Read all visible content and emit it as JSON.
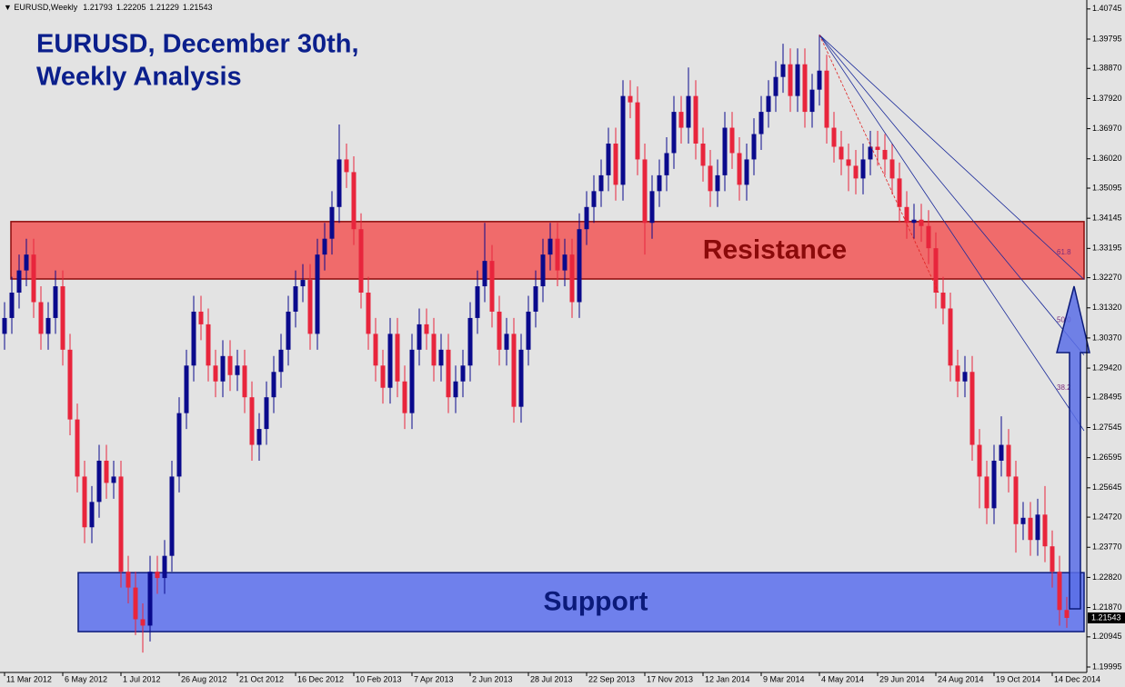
{
  "chart_data": {
    "type": "candlestick",
    "symbol": "EURUSD,Weekly",
    "title_lines": [
      "EURUSD, December 30th,",
      "Weekly Analysis"
    ],
    "up_color": "#0a0a8c",
    "down_color": "#e8253c",
    "categories": [
      "11 Mar 2012",
      null,
      null,
      null,
      null,
      null,
      null,
      null,
      "6 May 2012",
      null,
      null,
      null,
      null,
      null,
      null,
      null,
      "1 Jul 2012",
      null,
      null,
      null,
      null,
      null,
      null,
      null,
      "26 Aug 2012",
      null,
      null,
      null,
      null,
      null,
      null,
      null,
      "21 Oct 2012",
      null,
      null,
      null,
      null,
      null,
      null,
      null,
      "16 Dec 2012",
      null,
      null,
      null,
      null,
      null,
      null,
      null,
      "10 Feb 2013",
      null,
      null,
      null,
      null,
      null,
      null,
      null,
      "7 Apr 2013",
      null,
      null,
      null,
      null,
      null,
      null,
      null,
      "2 Jun 2013",
      null,
      null,
      null,
      null,
      null,
      null,
      null,
      "28 Jul 2013",
      null,
      null,
      null,
      null,
      null,
      null,
      null,
      "22 Sep 2013",
      null,
      null,
      null,
      null,
      null,
      null,
      null,
      "17 Nov 2013",
      null,
      null,
      null,
      null,
      null,
      null,
      null,
      "12 Jan 2014",
      null,
      null,
      null,
      null,
      null,
      null,
      null,
      "9 Mar 2014",
      null,
      null,
      null,
      null,
      null,
      null,
      null,
      "4 May 2014",
      null,
      null,
      null,
      null,
      null,
      null,
      null,
      "29 Jun 2014",
      null,
      null,
      null,
      null,
      null,
      null,
      null,
      "24 Aug 2014",
      null,
      null,
      null,
      null,
      null,
      null,
      null,
      "19 Oct 2014",
      null,
      null,
      null,
      null,
      null,
      null,
      null,
      "14 Dec 2014",
      null,
      null
    ],
    "open": [
      1.305,
      1.31,
      1.318,
      1.325,
      1.33,
      1.315,
      1.305,
      1.31,
      1.32,
      1.3,
      1.278,
      1.26,
      1.244,
      1.252,
      1.265,
      1.258,
      1.26,
      1.23,
      1.225,
      1.215,
      1.213,
      1.23,
      1.228,
      1.235,
      1.26,
      1.28,
      1.295,
      1.312,
      1.308,
      1.295,
      1.29,
      1.298,
      1.292,
      1.295,
      1.285,
      1.27,
      1.275,
      1.285,
      1.293,
      1.3,
      1.312,
      1.32,
      1.322,
      1.305,
      1.33,
      1.335,
      1.345,
      1.36,
      1.356,
      1.338,
      1.318,
      1.305,
      1.295,
      1.288,
      1.305,
      1.29,
      1.28,
      1.3,
      1.308,
      1.305,
      1.295,
      1.3,
      1.285,
      1.29,
      1.295,
      1.31,
      1.32,
      1.328,
      1.312,
      1.3,
      1.305,
      1.282,
      1.3,
      1.312,
      1.32,
      1.33,
      1.335,
      1.325,
      1.33,
      1.315,
      1.338,
      1.345,
      1.35,
      1.355,
      1.365,
      1.352,
      1.38,
      1.378,
      1.36,
      1.34,
      1.35,
      1.355,
      1.362,
      1.375,
      1.37,
      1.38,
      1.365,
      1.358,
      1.35,
      1.355,
      1.37,
      1.362,
      1.352,
      1.36,
      1.368,
      1.375,
      1.38,
      1.386,
      1.39,
      1.38,
      1.39,
      1.375,
      1.382,
      1.388,
      1.37,
      1.364,
      1.36,
      1.358,
      1.354,
      1.36,
      1.364,
      1.363,
      1.36,
      1.354,
      1.345,
      1.34,
      1.341,
      1.339,
      1.332,
      1.318,
      1.313,
      1.295,
      1.29,
      1.293,
      1.27,
      1.26,
      1.25,
      1.265,
      1.27,
      1.26,
      1.245,
      1.247,
      1.24,
      1.248,
      1.238,
      1.23,
      1.21793
    ],
    "high": [
      1.315,
      1.323,
      1.33,
      1.335,
      1.335,
      1.32,
      1.315,
      1.325,
      1.325,
      1.305,
      1.283,
      1.265,
      1.257,
      1.27,
      1.27,
      1.265,
      1.265,
      1.235,
      1.23,
      1.22,
      1.235,
      1.235,
      1.24,
      1.265,
      1.285,
      1.3,
      1.317,
      1.317,
      1.313,
      1.3,
      1.303,
      1.303,
      1.3,
      1.3,
      1.29,
      1.28,
      1.29,
      1.298,
      1.305,
      1.317,
      1.325,
      1.327,
      1.327,
      1.335,
      1.34,
      1.35,
      1.371,
      1.365,
      1.361,
      1.343,
      1.323,
      1.31,
      1.3,
      1.31,
      1.31,
      1.295,
      1.305,
      1.313,
      1.313,
      1.31,
      1.305,
      1.305,
      1.295,
      1.3,
      1.315,
      1.325,
      1.34,
      1.333,
      1.317,
      1.31,
      1.31,
      1.305,
      1.317,
      1.325,
      1.335,
      1.34,
      1.34,
      1.335,
      1.335,
      1.343,
      1.35,
      1.355,
      1.36,
      1.37,
      1.37,
      1.385,
      1.385,
      1.383,
      1.365,
      1.355,
      1.36,
      1.367,
      1.38,
      1.38,
      1.389,
      1.385,
      1.37,
      1.363,
      1.36,
      1.375,
      1.375,
      1.367,
      1.365,
      1.373,
      1.38,
      1.385,
      1.391,
      1.3965,
      1.395,
      1.395,
      1.395,
      1.387,
      1.3993,
      1.393,
      1.375,
      1.369,
      1.365,
      1.363,
      1.365,
      1.369,
      1.369,
      1.368,
      1.365,
      1.359,
      1.35,
      1.346,
      1.346,
      1.344,
      1.337,
      1.323,
      1.318,
      1.3,
      1.298,
      1.298,
      1.275,
      1.265,
      1.27,
      1.279,
      1.275,
      1.265,
      1.252,
      1.252,
      1.253,
      1.257,
      1.243,
      1.235,
      1.22205
    ],
    "low": [
      1.3,
      1.305,
      1.313,
      1.32,
      1.31,
      1.3,
      1.3,
      1.305,
      1.295,
      1.273,
      1.255,
      1.239,
      1.239,
      1.247,
      1.253,
      1.253,
      1.225,
      1.22,
      1.21,
      1.2045,
      1.208,
      1.223,
      1.223,
      1.23,
      1.255,
      1.275,
      1.29,
      1.303,
      1.29,
      1.285,
      1.285,
      1.287,
      1.287,
      1.28,
      1.265,
      1.265,
      1.27,
      1.28,
      1.288,
      1.295,
      1.307,
      1.315,
      1.3,
      1.3,
      1.325,
      1.33,
      1.34,
      1.351,
      1.333,
      1.313,
      1.3,
      1.29,
      1.283,
      1.283,
      1.285,
      1.275,
      1.275,
      1.295,
      1.3,
      1.29,
      1.29,
      1.28,
      1.28,
      1.285,
      1.29,
      1.305,
      1.315,
      1.307,
      1.295,
      1.295,
      1.277,
      1.277,
      1.295,
      1.307,
      1.315,
      1.325,
      1.32,
      1.32,
      1.31,
      1.31,
      1.333,
      1.34,
      1.345,
      1.35,
      1.347,
      1.347,
      1.373,
      1.355,
      1.33,
      1.335,
      1.345,
      1.35,
      1.357,
      1.365,
      1.365,
      1.36,
      1.353,
      1.345,
      1.345,
      1.35,
      1.357,
      1.347,
      1.347,
      1.355,
      1.363,
      1.37,
      1.375,
      1.381,
      1.375,
      1.375,
      1.37,
      1.37,
      1.377,
      1.365,
      1.359,
      1.355,
      1.35,
      1.349,
      1.349,
      1.355,
      1.358,
      1.355,
      1.349,
      1.34,
      1.335,
      1.335,
      1.334,
      1.327,
      1.313,
      1.308,
      1.29,
      1.285,
      1.285,
      1.265,
      1.25,
      1.245,
      1.245,
      1.26,
      1.255,
      1.236,
      1.24,
      1.235,
      1.235,
      1.233,
      1.225,
      1.213,
      1.21229
    ],
    "close": [
      1.31,
      1.318,
      1.325,
      1.33,
      1.315,
      1.305,
      1.31,
      1.32,
      1.3,
      1.278,
      1.26,
      1.244,
      1.252,
      1.265,
      1.258,
      1.26,
      1.23,
      1.225,
      1.215,
      1.213,
      1.23,
      1.228,
      1.235,
      1.26,
      1.28,
      1.295,
      1.312,
      1.308,
      1.295,
      1.29,
      1.298,
      1.292,
      1.295,
      1.285,
      1.27,
      1.275,
      1.285,
      1.293,
      1.3,
      1.312,
      1.32,
      1.322,
      1.305,
      1.33,
      1.335,
      1.345,
      1.36,
      1.356,
      1.338,
      1.318,
      1.305,
      1.295,
      1.288,
      1.305,
      1.29,
      1.28,
      1.3,
      1.308,
      1.305,
      1.295,
      1.3,
      1.285,
      1.29,
      1.295,
      1.31,
      1.32,
      1.328,
      1.312,
      1.3,
      1.305,
      1.282,
      1.3,
      1.312,
      1.32,
      1.33,
      1.335,
      1.325,
      1.33,
      1.315,
      1.338,
      1.345,
      1.35,
      1.355,
      1.365,
      1.352,
      1.38,
      1.378,
      1.36,
      1.34,
      1.35,
      1.355,
      1.362,
      1.375,
      1.37,
      1.38,
      1.365,
      1.358,
      1.35,
      1.355,
      1.37,
      1.362,
      1.352,
      1.36,
      1.368,
      1.375,
      1.38,
      1.386,
      1.39,
      1.38,
      1.39,
      1.375,
      1.382,
      1.388,
      1.37,
      1.364,
      1.36,
      1.358,
      1.354,
      1.36,
      1.364,
      1.363,
      1.36,
      1.354,
      1.345,
      1.34,
      1.341,
      1.339,
      1.332,
      1.318,
      1.313,
      1.295,
      1.29,
      1.293,
      1.27,
      1.26,
      1.25,
      1.265,
      1.27,
      1.26,
      1.245,
      1.247,
      1.24,
      1.248,
      1.238,
      1.23,
      1.21793,
      1.21543
    ],
    "ylim": [
      1.1988,
      1.4097
    ],
    "yticks": [
      1.40745,
      1.39795,
      {
        "value": 1.3887,
        "label": "1.38870"
      },
      {
        "value": 1.3792,
        "label": "1.37920"
      },
      {
        "value": 1.3697,
        "label": "1.36970"
      },
      {
        "value": 1.3602,
        "label": "1.36020"
      },
      1.35095,
      1.34145,
      1.33195,
      {
        "value": 1.3227,
        "label": "1.32270"
      },
      {
        "value": 1.3132,
        "label": "1.31320"
      },
      {
        "value": 1.3037,
        "label": "1.30370"
      },
      {
        "value": 1.2942,
        "label": "1.29420"
      },
      1.28495,
      1.27545,
      1.26595,
      1.25645,
      {
        "value": 1.2472,
        "label": "1.24720"
      },
      {
        "value": 1.2377,
        "label": "1.23770"
      },
      {
        "value": 1.2282,
        "label": "1.22820"
      },
      {
        "value": 1.2187,
        "label": "1.21870"
      },
      1.20945,
      1.19995
    ],
    "zones": [
      {
        "label": "Resistance",
        "range": [
          1.3223,
          1.3404
        ],
        "color": "#f06b6b",
        "text_color": "#8b0a0a"
      },
      {
        "label": "Support",
        "range": [
          1.2111,
          1.2297
        ],
        "color": "#6f80ec",
        "text_color": "#0b1a7a"
      }
    ],
    "fibonacci_fan": {
      "levels": [
        61.8,
        {
          "value": 50,
          "label": "50.0"
        },
        38.2
      ]
    }
  }
}
